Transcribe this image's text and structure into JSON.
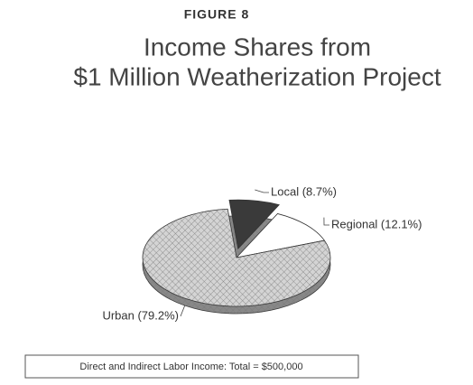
{
  "chart_data": {
    "type": "pie",
    "figure_label": "FIGURE 8",
    "title": [
      "Income Shares from",
      "$1 Million Weatherization Project"
    ],
    "categories": [
      "Local",
      "Regional",
      "Urban"
    ],
    "values": [
      8.7,
      12.1,
      79.2
    ],
    "value_labels": [
      "Local (8.7%)",
      "Regional (12.1%)",
      "Urban (79.2%)"
    ],
    "colors": [
      "#3a3a3a",
      "#ffffff",
      "#d4d4d4"
    ],
    "note": "Direct and Indirect Labor Income: Total = $500,000"
  }
}
